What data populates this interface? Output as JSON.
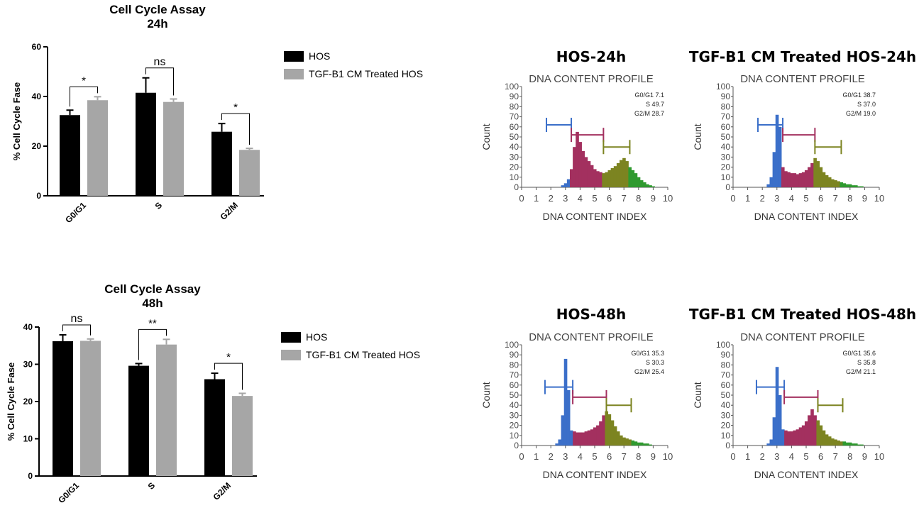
{
  "colors": {
    "hos": "#000000",
    "treated": "#a6a6a6",
    "g0g1": "#3b6fc9",
    "s": "#a3305f",
    "g2m": "#7c8421",
    "tail": "#2f9a2f",
    "axis_text": "#4a4a4a"
  },
  "chart_data": [
    {
      "type": "bar",
      "title": "Cell Cycle Assay",
      "subtitle": "24h",
      "ylabel": "% Cell Cycle Fase",
      "xlabel": "",
      "categories": [
        "G0/G1",
        "S",
        "G2/M"
      ],
      "ylim": [
        0,
        60
      ],
      "yticks": [
        "0",
        "20",
        "40",
        "60"
      ],
      "series": [
        {
          "name": "HOS",
          "values": [
            32.5,
            41.5,
            25.8
          ],
          "errors": [
            2.0,
            6.0,
            3.3
          ]
        },
        {
          "name": "TGF-B1 CM Treated HOS",
          "values": [
            38.5,
            37.8,
            18.5
          ],
          "errors": [
            1.4,
            1.2,
            0.6
          ]
        }
      ],
      "significance": [
        "*",
        "ns",
        "*"
      ],
      "legend_position": "right"
    },
    {
      "type": "bar",
      "title": "Cell Cycle Assay",
      "subtitle": "48h",
      "ylabel": "% Cell Cycle Fase",
      "xlabel": "",
      "categories": [
        "G0/G1",
        "S",
        "G2/M"
      ],
      "ylim": [
        0,
        40
      ],
      "yticks": [
        "0",
        "10",
        "20",
        "30",
        "40"
      ],
      "series": [
        {
          "name": "HOS",
          "values": [
            36.2,
            29.6,
            26.0
          ],
          "errors": [
            1.7,
            0.6,
            1.6
          ]
        },
        {
          "name": "TGF-B1 CM Treated HOS",
          "values": [
            36.3,
            35.3,
            21.5
          ],
          "errors": [
            0.5,
            1.4,
            0.7
          ]
        }
      ],
      "significance": [
        "ns",
        "**",
        "*"
      ],
      "legend_position": "right"
    },
    {
      "type": "area",
      "title": "HOS-24h",
      "subtitle": "DNA CONTENT PROFILE",
      "xlabel": "DNA CONTENT INDEX",
      "ylabel": "Count",
      "xlim": [
        0,
        10
      ],
      "ylim": [
        0,
        100
      ],
      "xticks": [
        "0",
        "1",
        "2",
        "3",
        "4",
        "5",
        "6",
        "7",
        "8",
        "9",
        "10"
      ],
      "yticks": [
        "0",
        "10",
        "20",
        "30",
        "40",
        "50",
        "60",
        "70",
        "80",
        "90",
        "100"
      ],
      "stats": [
        "G0/G1 7.1",
        "S 49.7",
        "G2/M 28.7"
      ],
      "gates": [
        {
          "phase": "G0/G1",
          "x": [
            1.7,
            3.4
          ],
          "y": 62
        },
        {
          "phase": "S",
          "x": [
            3.4,
            5.6
          ],
          "y": 52
        },
        {
          "phase": "G2/M",
          "x": [
            5.6,
            7.4
          ],
          "y": 40
        }
      ],
      "histogram": {
        "x": [
          2.8,
          3.0,
          3.2,
          3.4,
          3.6,
          3.8,
          4.0,
          4.2,
          4.4,
          4.6,
          4.8,
          5.0,
          5.2,
          5.4,
          5.6,
          5.8,
          6.0,
          6.2,
          6.4,
          6.6,
          6.8,
          7.0,
          7.2,
          7.4,
          7.6,
          7.8,
          8.0,
          8.2,
          8.4,
          8.6,
          8.8,
          9.0
        ],
        "y": [
          2,
          4,
          8,
          18,
          40,
          55,
          45,
          36,
          30,
          26,
          22,
          18,
          16,
          15,
          14,
          15,
          17,
          19,
          21,
          24,
          27,
          29,
          26,
          20,
          17,
          14,
          10,
          7,
          5,
          3,
          2,
          1
        ]
      }
    },
    {
      "type": "area",
      "title": "TGF-B1 CM Treated HOS-24h",
      "subtitle": "DNA CONTENT PROFILE",
      "xlabel": "DNA CONTENT INDEX",
      "ylabel": "Count",
      "xlim": [
        0,
        10
      ],
      "ylim": [
        0,
        100
      ],
      "xticks": [
        "0",
        "1",
        "2",
        "3",
        "4",
        "5",
        "6",
        "7",
        "8",
        "9",
        "10"
      ],
      "yticks": [
        "0",
        "10",
        "20",
        "30",
        "40",
        "50",
        "60",
        "70",
        "80",
        "90",
        "100"
      ],
      "stats": [
        "G0/G1 38.7",
        "S 37.0",
        "G2/M 19.0"
      ],
      "gates": [
        {
          "phase": "G0/G1",
          "x": [
            1.7,
            3.4
          ],
          "y": 62
        },
        {
          "phase": "S",
          "x": [
            3.4,
            5.6
          ],
          "y": 52
        },
        {
          "phase": "G2/M",
          "x": [
            5.6,
            7.4
          ],
          "y": 40
        }
      ],
      "histogram": {
        "x": [
          2.4,
          2.6,
          2.8,
          3.0,
          3.2,
          3.4,
          3.6,
          3.8,
          4.0,
          4.2,
          4.4,
          4.6,
          4.8,
          5.0,
          5.2,
          5.4,
          5.6,
          5.8,
          6.0,
          6.2,
          6.4,
          6.6,
          6.8,
          7.0,
          7.2,
          7.4,
          7.6,
          7.8,
          8.0,
          8.2,
          8.4,
          8.6,
          8.8
        ],
        "y": [
          3,
          10,
          35,
          72,
          60,
          20,
          16,
          15,
          14,
          14,
          13,
          14,
          15,
          17,
          20,
          24,
          29,
          26,
          20,
          15,
          12,
          10,
          8,
          7,
          6,
          5,
          4,
          3,
          3,
          2,
          2,
          1,
          1
        ]
      }
    },
    {
      "type": "area",
      "title": "HOS-48h",
      "subtitle": "DNA CONTENT PROFILE",
      "xlabel": "DNA CONTENT INDEX",
      "ylabel": "Count",
      "xlim": [
        0,
        10
      ],
      "ylim": [
        0,
        100
      ],
      "xticks": [
        "0",
        "1",
        "2",
        "3",
        "4",
        "5",
        "6",
        "7",
        "8",
        "9",
        "10"
      ],
      "yticks": [
        "0",
        "10",
        "20",
        "30",
        "40",
        "50",
        "60",
        "70",
        "80",
        "90",
        "100"
      ],
      "stats": [
        "G0/G1 35.3",
        "S 30.3",
        "G2/M 25.4"
      ],
      "gates": [
        {
          "phase": "G0/G1",
          "x": [
            1.6,
            3.5
          ],
          "y": 58
        },
        {
          "phase": "S",
          "x": [
            3.5,
            5.8
          ],
          "y": 48
        },
        {
          "phase": "G2/M",
          "x": [
            5.8,
            7.5
          ],
          "y": 40
        }
      ],
      "histogram": {
        "x": [
          2.4,
          2.6,
          2.8,
          3.0,
          3.2,
          3.4,
          3.6,
          3.8,
          4.0,
          4.2,
          4.4,
          4.6,
          4.8,
          5.0,
          5.2,
          5.4,
          5.6,
          5.8,
          6.0,
          6.2,
          6.4,
          6.6,
          6.8,
          7.0,
          7.2,
          7.4,
          7.6,
          7.8,
          8.0,
          8.2,
          8.4,
          8.6,
          8.8
        ],
        "y": [
          2,
          6,
          30,
          86,
          55,
          15,
          14,
          13,
          13,
          13,
          14,
          15,
          16,
          18,
          20,
          24,
          30,
          34,
          31,
          25,
          19,
          14,
          10,
          8,
          7,
          6,
          5,
          4,
          3,
          3,
          2,
          2,
          1
        ]
      }
    },
    {
      "type": "area",
      "title": "TGF-B1 CM Treated HOS-48h",
      "subtitle": "DNA CONTENT PROFILE",
      "xlabel": "DNA CONTENT INDEX",
      "ylabel": "Count",
      "xlim": [
        0,
        10
      ],
      "ylim": [
        0,
        100
      ],
      "xticks": [
        "0",
        "1",
        "2",
        "3",
        "4",
        "5",
        "6",
        "7",
        "8",
        "9",
        "10"
      ],
      "yticks": [
        "0",
        "10",
        "20",
        "30",
        "40",
        "50",
        "60",
        "70",
        "80",
        "90",
        "100"
      ],
      "stats": [
        "G0/G1 35.6",
        "S 35.8",
        "G2/M 21.1"
      ],
      "gates": [
        {
          "phase": "G0/G1",
          "x": [
            1.6,
            3.5
          ],
          "y": 58
        },
        {
          "phase": "S",
          "x": [
            3.5,
            5.8
          ],
          "y": 48
        },
        {
          "phase": "G2/M",
          "x": [
            5.8,
            7.5
          ],
          "y": 40
        }
      ],
      "histogram": {
        "x": [
          2.4,
          2.6,
          2.8,
          3.0,
          3.2,
          3.4,
          3.6,
          3.8,
          4.0,
          4.2,
          4.4,
          4.6,
          4.8,
          5.0,
          5.2,
          5.4,
          5.6,
          5.8,
          6.0,
          6.2,
          6.4,
          6.6,
          6.8,
          7.0,
          7.2,
          7.4,
          7.6,
          7.8,
          8.0,
          8.2,
          8.4,
          8.6,
          8.8
        ],
        "y": [
          2,
          6,
          28,
          78,
          50,
          16,
          15,
          14,
          14,
          15,
          16,
          18,
          20,
          24,
          30,
          36,
          30,
          25,
          20,
          15,
          11,
          9,
          7,
          6,
          5,
          4,
          4,
          3,
          3,
          2,
          2,
          1,
          1
        ]
      }
    }
  ]
}
